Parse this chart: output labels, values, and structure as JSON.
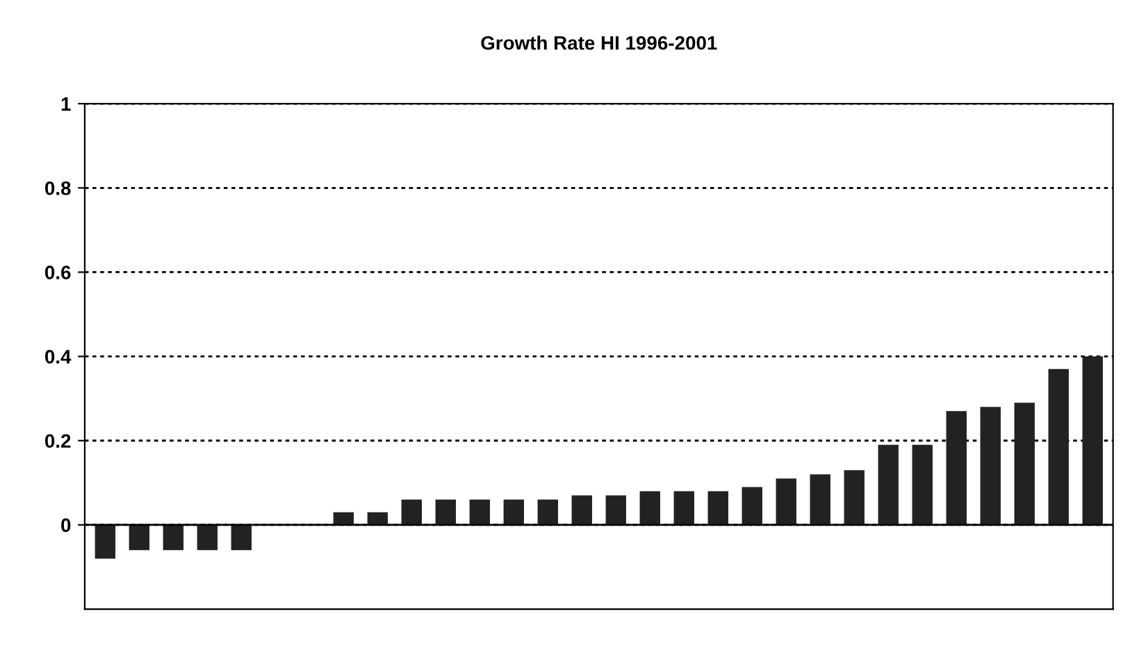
{
  "chart_data": {
    "type": "bar",
    "title": "Growth Rate HI 1996-2001",
    "categories": [
      null,
      null,
      null,
      null,
      null,
      null,
      null,
      null,
      null,
      null,
      null,
      null,
      null,
      null,
      null,
      null,
      null,
      null,
      null,
      null,
      null,
      null,
      null,
      null,
      null,
      null,
      null,
      null,
      null,
      null
    ],
    "values": [
      -0.08,
      -0.06,
      -0.06,
      -0.06,
      -0.06,
      0,
      0,
      0.03,
      0.03,
      0.06,
      0.06,
      0.06,
      0.06,
      0.06,
      0.07,
      0.07,
      0.08,
      0.08,
      0.08,
      0.09,
      0.11,
      0.12,
      0.13,
      0.19,
      0.19,
      0.27,
      0.28,
      0.29,
      0.37,
      0.4
    ],
    "color": "#222222",
    "ylim": [
      -0.2,
      1
    ],
    "yticks": [
      0,
      0.2,
      0.4,
      0.6,
      0.8,
      1
    ],
    "grid": "y"
  }
}
